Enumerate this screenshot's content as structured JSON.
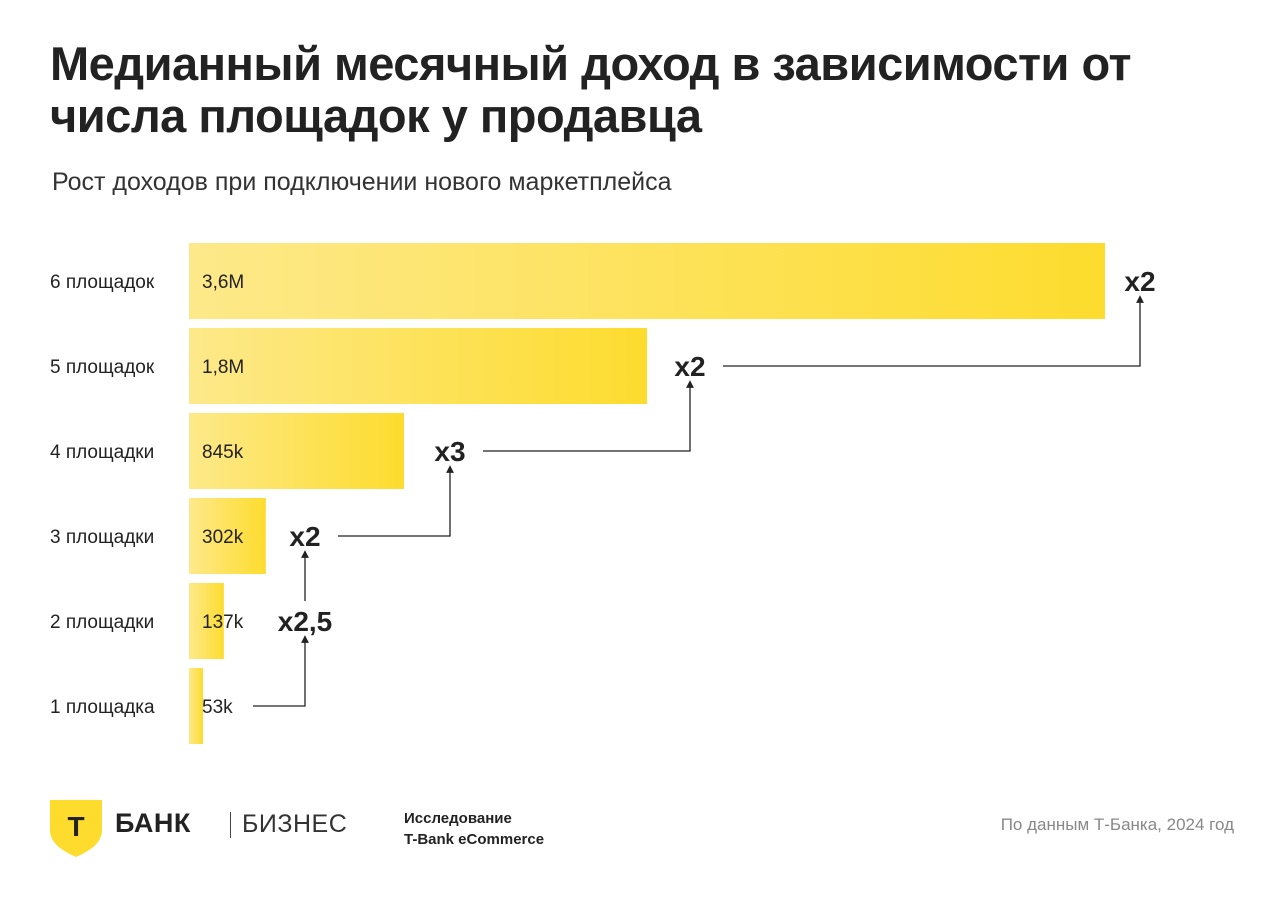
{
  "header": {
    "title": "Медианный месячный доход в зависимости от числа площадок у продавца",
    "subtitle": "Рост доходов при подключении нового маркетплейса"
  },
  "chart_data": {
    "type": "bar",
    "orientation": "horizontal",
    "title": "Медианный месячный доход в зависимости от числа площадок у продавца",
    "subtitle": "Рост доходов при подключении нового маркетплейса",
    "categories": [
      "6 площадок",
      "5 площадок",
      "4 площадки",
      "3 площадки",
      "2 площадки",
      "1 площадка"
    ],
    "values": [
      3600000,
      1800000,
      845000,
      302000,
      137000,
      53000
    ],
    "value_labels": [
      "3,6M",
      "1,8M",
      "845k",
      "302k",
      "137k",
      "53k"
    ],
    "growth_multipliers": [
      {
        "from": "1 площадка",
        "to": "2 площадки",
        "label": "x2,5"
      },
      {
        "from": "2 площадки",
        "to": "3 площадки",
        "label": "x2"
      },
      {
        "from": "3 площадки",
        "to": "4 площадки",
        "label": "x3"
      },
      {
        "from": "4 площадки",
        "to": "5 площадок",
        "label": "x2"
      },
      {
        "from": "5 площадок",
        "to": "6 площадок",
        "label": "x2"
      }
    ],
    "xlim": [
      0,
      3600000
    ],
    "grid": false,
    "colors": {
      "bar_light": "#fde98a",
      "bar_dark": "#fddc2e",
      "text": "#222222"
    }
  },
  "footer": {
    "logo_letter": "Т",
    "brand": "БАНК",
    "brand_sub": "БИЗНЕС",
    "study_line1": "Исследование",
    "study_line2": "T-Bank eCommerce",
    "source": "По данным Т-Банка, 2024 год"
  }
}
